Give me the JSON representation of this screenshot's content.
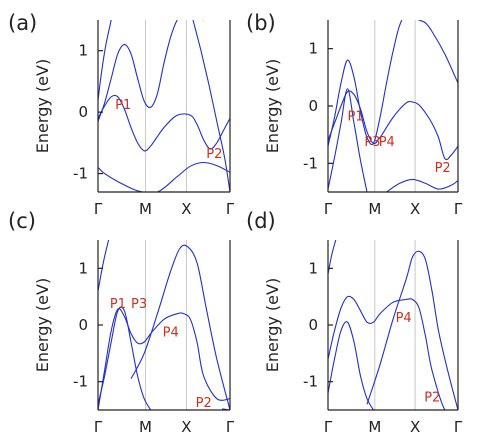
{
  "chart_data": [
    {
      "panel_label": "(a)",
      "type": "line",
      "ylabel": "Energy (eV)",
      "ylim": [
        -1.3,
        1.5
      ],
      "yticks": [
        -1,
        0,
        1
      ],
      "x_ticks": [
        "Γ",
        "M",
        "X",
        "Γ"
      ],
      "grid": "vertical at high-symmetry points",
      "series": [
        {
          "x": [
            0,
            0.03,
            0.06,
            0.1
          ],
          "y": [
            0.2,
            0.7,
            1.1,
            1.5
          ]
        },
        {
          "x": [
            0,
            0.05,
            0.1,
            0.15,
            0.2,
            0.25,
            0.3,
            0.35,
            0.4,
            0.45,
            0.5,
            0.55,
            0.6,
            0.65,
            0.7,
            0.75,
            0.8
          ],
          "y": [
            -0.15,
            0.15,
            0.55,
            0.95,
            1.1,
            0.95,
            0.55,
            0.18,
            0.08,
            0.3,
            0.8,
            1.22,
            1.5,
            1.6,
            1.58,
            1.55,
            1.5
          ]
        },
        {
          "x": [
            0,
            0.05,
            0.1,
            0.15,
            0.2,
            0.25,
            0.3,
            0.35,
            0.4,
            0.5,
            0.6,
            0.7,
            0.75,
            0.8,
            0.85,
            0.9,
            0.95,
            1.0
          ],
          "y": [
            -0.1,
            0.1,
            0.25,
            0.25,
            0.05,
            -0.25,
            -0.5,
            -0.63,
            -0.55,
            -0.25,
            -0.05,
            -0.05,
            -0.2,
            -0.45,
            -0.6,
            -0.5,
            -0.3,
            -0.1
          ]
        },
        {
          "x": [
            0,
            0.05,
            0.15,
            0.3,
            0.45,
            0.6,
            0.7,
            0.8,
            0.9,
            1.0
          ],
          "y": [
            -0.9,
            -1.0,
            -1.13,
            -1.28,
            -1.3,
            -1.05,
            -0.88,
            -0.82,
            -0.87,
            -0.98
          ]
        },
        {
          "x": [
            0.72,
            0.78,
            0.84,
            0.9,
            0.96,
            1.0
          ],
          "y": [
            1.5,
            1.0,
            0.45,
            -0.15,
            -0.75,
            -1.3
          ]
        }
      ],
      "annotations": [
        {
          "text": "P1",
          "x": 0.13,
          "y": 0.05
        },
        {
          "text": "P2",
          "x": 0.82,
          "y": -0.75
        }
      ]
    },
    {
      "panel_label": "(b)",
      "type": "line",
      "ylabel": "Energy (eV)",
      "ylim": [
        -1.5,
        1.5
      ],
      "yticks": [
        -1,
        0,
        1
      ],
      "x_ticks": [
        "Γ",
        "M",
        "X",
        "Γ"
      ],
      "grid": "vertical at high-symmetry points",
      "series": [
        {
          "x": [
            0,
            0.05,
            0.1,
            0.15,
            0.2,
            0.25,
            0.3,
            0.35,
            0.4,
            0.45,
            0.5,
            0.55,
            0.6,
            0.65,
            0.7,
            0.75,
            0.8,
            0.9,
            1.0
          ],
          "y": [
            -0.7,
            -0.2,
            0.4,
            0.8,
            0.5,
            -0.1,
            -0.55,
            -0.65,
            -0.2,
            0.4,
            0.95,
            1.4,
            1.6,
            1.55,
            1.5,
            1.45,
            1.3,
            0.9,
            0.4
          ]
        },
        {
          "x": [
            0,
            0.05,
            0.1,
            0.15,
            0.2,
            0.25,
            0.3,
            0.35,
            0.4,
            0.5,
            0.6,
            0.65,
            0.7,
            0.75,
            0.8,
            0.85,
            0.9,
            0.95,
            1.0
          ],
          "y": [
            -0.6,
            -0.3,
            0.0,
            0.25,
            0.2,
            -0.05,
            -0.45,
            -0.65,
            -0.55,
            -0.2,
            0.05,
            0.07,
            0.02,
            -0.12,
            -0.3,
            -0.55,
            -0.92,
            -0.85,
            -0.7
          ]
        },
        {
          "x": [
            0,
            0.05,
            0.1,
            0.15,
            0.2,
            0.25,
            0.3
          ],
          "y": [
            -1.45,
            -0.9,
            -0.3,
            0.3,
            -0.3,
            -0.95,
            -1.5
          ]
        },
        {
          "x": [
            0.45,
            0.55,
            0.65,
            0.75,
            0.85,
            0.95,
            1.0
          ],
          "y": [
            -1.5,
            -1.35,
            -1.28,
            -1.35,
            -1.45,
            -1.38,
            -1.3
          ]
        }
      ],
      "annotations": [
        {
          "text": "P1",
          "x": 0.15,
          "y": -0.25
        },
        {
          "text": "P3",
          "x": 0.28,
          "y": -0.7
        },
        {
          "text": "P4",
          "x": 0.39,
          "y": -0.7
        },
        {
          "text": "P2",
          "x": 0.82,
          "y": -1.15
        }
      ]
    },
    {
      "panel_label": "(c)",
      "type": "line",
      "ylabel": "Energy (eV)",
      "ylim": [
        -1.5,
        1.5
      ],
      "yticks": [
        -1,
        0,
        1
      ],
      "x_ticks": [
        "Γ",
        "M",
        "X",
        "Γ"
      ],
      "grid": "vertical at high-symmetry points",
      "series": [
        {
          "x": [
            0,
            0.05,
            0.1,
            0.15,
            0.2,
            0.25,
            0.3,
            0.35,
            0.4,
            0.5,
            0.6,
            0.65,
            0.7,
            0.75,
            0.8,
            0.9,
            1.0
          ],
          "y": [
            -1.5,
            -0.8,
            -0.1,
            0.28,
            0.15,
            -0.15,
            -0.32,
            -0.3,
            -0.15,
            0.1,
            0.2,
            0.2,
            0.1,
            -0.3,
            -0.9,
            -1.3,
            -1.3
          ]
        },
        {
          "x": [
            0,
            0.05,
            0.1,
            0.15,
            0.2,
            0.25,
            0.3,
            0.35,
            0.4
          ],
          "y": [
            -1.4,
            -0.9,
            -0.3,
            0.25,
            0.25,
            -0.3,
            -0.9,
            -1.3,
            -1.5
          ]
        },
        {
          "x": [
            0.25,
            0.35,
            0.45,
            0.55,
            0.62,
            0.68,
            0.75,
            0.82,
            0.9,
            1.0
          ],
          "y": [
            -0.95,
            -0.5,
            0.2,
            0.95,
            1.35,
            1.38,
            1.1,
            0.3,
            -0.6,
            -1.5
          ]
        },
        {
          "x": [
            0,
            0.04,
            0.08
          ],
          "y": [
            0.6,
            1.1,
            1.5
          ]
        },
        {
          "x": [
            0.94,
            1.0
          ],
          "y": [
            -1.48,
            -1.5
          ]
        }
      ],
      "annotations": [
        {
          "text": "P1",
          "x": 0.09,
          "y": 0.3
        },
        {
          "text": "P3",
          "x": 0.25,
          "y": 0.3
        },
        {
          "text": "P4",
          "x": 0.49,
          "y": -0.2
        },
        {
          "text": "P2",
          "x": 0.74,
          "y": -1.45
        }
      ]
    },
    {
      "panel_label": "(d)",
      "type": "line",
      "ylabel": "Energy (eV)",
      "ylim": [
        -1.5,
        1.5
      ],
      "yticks": [
        -1,
        0,
        1
      ],
      "x_ticks": [
        "Γ",
        "M",
        "X",
        "Γ"
      ],
      "grid": "vertical at high-symmetry points",
      "series": [
        {
          "x": [
            0,
            0.05,
            0.1,
            0.15,
            0.2,
            0.25,
            0.3,
            0.35,
            0.4,
            0.5,
            0.6,
            0.65,
            0.7,
            0.75,
            0.8,
            0.9,
            1.0
          ],
          "y": [
            -0.6,
            -0.1,
            0.3,
            0.5,
            0.45,
            0.25,
            0.05,
            0.05,
            0.2,
            0.4,
            0.45,
            0.45,
            0.3,
            -0.2,
            -0.8,
            -1.5,
            -1.5
          ]
        },
        {
          "x": [
            0,
            0.05,
            0.1,
            0.15,
            0.2,
            0.25,
            0.3,
            0.35
          ],
          "y": [
            -1.2,
            -0.6,
            -0.1,
            0.05,
            -0.3,
            -0.9,
            -1.3,
            -1.5
          ]
        },
        {
          "x": [
            0.3,
            0.4,
            0.5,
            0.6,
            0.65,
            0.7,
            0.75,
            0.8,
            0.85,
            0.92,
            1.0
          ],
          "y": [
            -1.4,
            -0.7,
            0.1,
            0.8,
            1.2,
            1.3,
            1.15,
            0.6,
            -0.1,
            -0.8,
            -1.5
          ]
        },
        {
          "x": [
            0,
            0.03,
            0.06
          ],
          "y": [
            0.9,
            1.25,
            1.5
          ]
        }
      ],
      "annotations": [
        {
          "text": "P4",
          "x": 0.52,
          "y": 0.05
        },
        {
          "text": "P2",
          "x": 0.74,
          "y": -1.35
        }
      ]
    }
  ]
}
